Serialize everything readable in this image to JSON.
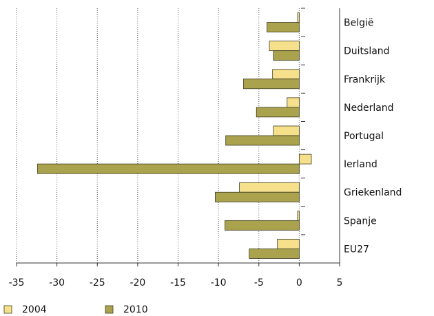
{
  "chart_data": {
    "type": "hbar",
    "categories": [
      "België",
      "Duitsland",
      "Frankrijk",
      "Nederland",
      "Portugal",
      "Ierland",
      "Griekenland",
      "Spanje",
      "EU27"
    ],
    "series": [
      {
        "name": "2004",
        "color": "#f6e08c",
        "values": [
          -0.2,
          -3.7,
          -3.3,
          -1.5,
          -3.2,
          1.5,
          -7.4,
          -0.2,
          -2.7
        ]
      },
      {
        "name": "2010",
        "color": "#aaa24c",
        "values": [
          -4.0,
          -3.2,
          -6.9,
          -5.3,
          -9.1,
          -32.4,
          -10.4,
          -9.2,
          -6.2
        ]
      }
    ],
    "xlim": [
      -35,
      5
    ],
    "xticks": [
      -35,
      -30,
      -25,
      -20,
      -15,
      -10,
      -5,
      0,
      5
    ],
    "grid": true
  }
}
